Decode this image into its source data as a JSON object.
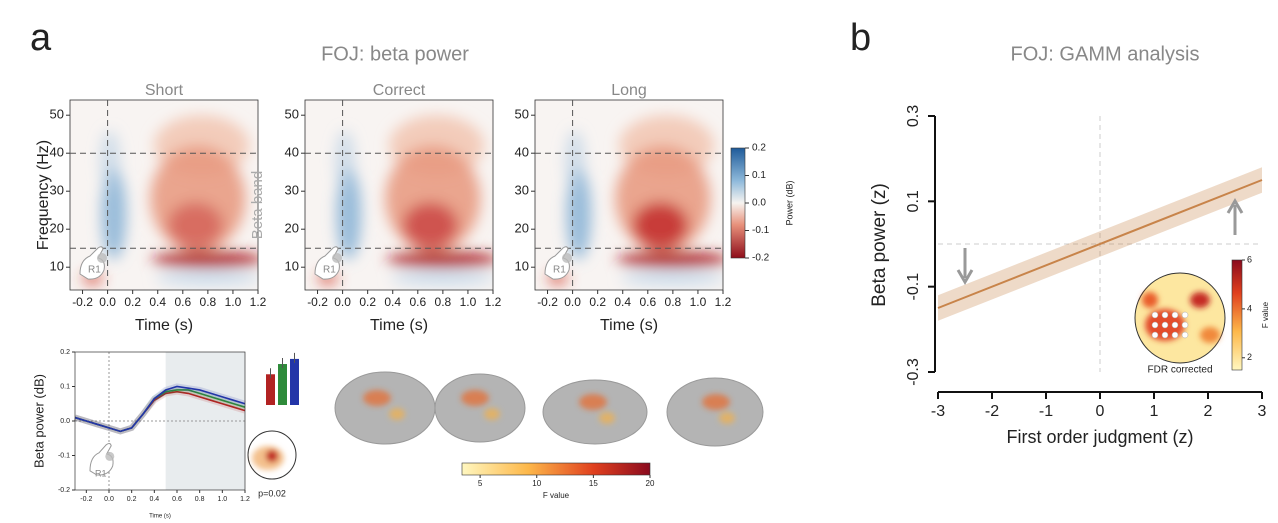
{
  "panel_a": {
    "label": "a",
    "title": "FOJ: beta power",
    "heatmaps": {
      "titles": [
        "Short",
        "Correct",
        "Long"
      ],
      "ylabel": "Frequency (Hz)",
      "xlabel": "Time (s)",
      "xlim": [
        -0.3,
        1.2
      ],
      "ylim": [
        4,
        54
      ],
      "xticks": [
        -0.2,
        {
          "value": 0,
          "label": "0.0"
        },
        0.2,
        0.4,
        0.6,
        0.8,
        {
          "value": 1,
          "label": "1.0"
        },
        1.2
      ],
      "yticks": [
        10,
        20,
        30,
        40,
        50
      ],
      "beta_band_hz": [
        15,
        40
      ],
      "band_label": "Beta band",
      "hand_label": "R1",
      "colorbar": {
        "label": "Power (dB)",
        "ylim": [
          -0.2,
          0.2
        ],
        "yticks": [
          0.2,
          0.1,
          {
            "value": 0,
            "label": "0.0"
          },
          -0.1,
          -0.2
        ]
      }
    },
    "timecourse": {
      "ylabel": "Beta power (dB)",
      "xlabel": "Time (s)",
      "xlim": [
        -0.3,
        1.2
      ],
      "ylim": [
        -0.2,
        0.2
      ],
      "xticks": [
        -0.2,
        {
          "value": 0,
          "label": "0.0"
        },
        0.2,
        0.4,
        0.6,
        0.8,
        {
          "value": 1,
          "label": "1.0"
        },
        1.2
      ],
      "yticks": [
        0.2,
        0.1,
        {
          "value": 0,
          "label": "0.0"
        },
        -0.1,
        -0.2
      ],
      "window": [
        0.5,
        1.2
      ],
      "hand_label": "R1",
      "x": [
        -0.3,
        -0.2,
        -0.1,
        0,
        0.1,
        0.2,
        0.3,
        0.4,
        0.5,
        0.6,
        0.7,
        0.8,
        0.9,
        1.0,
        1.1,
        1.2
      ],
      "series": [
        {
          "color": "#b22222",
          "values": [
            0.01,
            0.0,
            -0.01,
            -0.02,
            -0.03,
            -0.02,
            0.02,
            0.06,
            0.08,
            0.085,
            0.08,
            0.07,
            0.06,
            0.05,
            0.04,
            0.03
          ]
        },
        {
          "color": "#2e8b3a",
          "values": [
            0.01,
            0.0,
            -0.01,
            -0.02,
            -0.03,
            -0.02,
            0.02,
            0.065,
            0.085,
            0.09,
            0.09,
            0.08,
            0.07,
            0.06,
            0.05,
            0.04
          ]
        },
        {
          "color": "#2335a8",
          "values": [
            0.01,
            0.0,
            -0.01,
            -0.02,
            -0.03,
            -0.02,
            0.02,
            0.065,
            0.09,
            0.1,
            0.095,
            0.09,
            0.08,
            0.07,
            0.06,
            0.05
          ]
        }
      ],
      "bars": {
        "values": [
          0.06,
          0.08,
          0.09
        ],
        "colors": [
          "#b22222",
          "#2e8b3a",
          "#2335a8"
        ]
      }
    },
    "topo_label": "p=0.02",
    "brain_colorbar": {
      "label": "F value",
      "xlim": [
        3.4,
        20
      ],
      "xticks": [
        5,
        10,
        15,
        20
      ]
    }
  },
  "panel_b": {
    "label": "b",
    "title": "FOJ: GAMM analysis",
    "xlabel": "First order judgment (z)",
    "ylabel": "Beta power (z)",
    "xlim": [
      -3,
      3
    ],
    "ylim": [
      -0.3,
      0.3
    ],
    "xticks": [
      -3,
      -2,
      -1,
      0,
      1,
      2,
      3
    ],
    "yticks": [
      -0.3,
      -0.1,
      0.1,
      0.3
    ],
    "x": [
      -3,
      3
    ],
    "values": [
      -0.15,
      0.15
    ],
    "lower": [
      -0.18,
      0.12
    ],
    "upper": [
      -0.12,
      0.18
    ],
    "color": "#c8844a",
    "colorbar": {
      "label": "F value",
      "ylim": [
        1.5,
        6
      ],
      "yticks": [
        2,
        4,
        6
      ]
    },
    "topo_label": "FDR corrected"
  }
}
